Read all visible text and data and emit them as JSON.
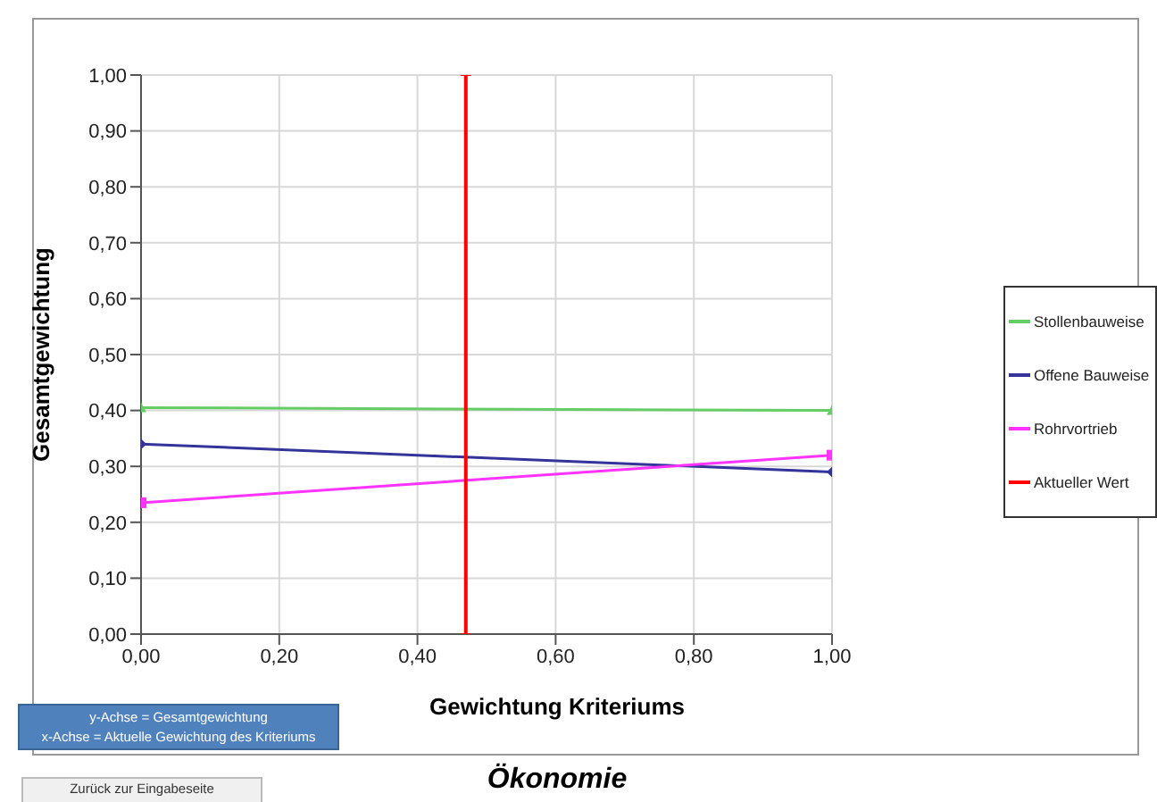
{
  "chart_data": {
    "type": "line",
    "title": "Ökonomie",
    "xlabel": "Gewichtung Kriteriums",
    "ylabel": "Gesamtgewichtung",
    "xlim": [
      0,
      1
    ],
    "ylim": [
      0,
      1
    ],
    "xticks": [
      {
        "value": 0,
        "label": "0,00"
      },
      {
        "value": 0.2,
        "label": "0,20"
      },
      {
        "value": 0.4,
        "label": "0,40"
      },
      {
        "value": 0.6,
        "label": "0,60"
      },
      {
        "value": 0.8,
        "label": "0,80"
      },
      {
        "value": 1,
        "label": "1,00"
      }
    ],
    "yticks": [
      {
        "value": 0,
        "label": "0,00"
      },
      {
        "value": 0.1,
        "label": "0,10"
      },
      {
        "value": 0.2,
        "label": "0,20"
      },
      {
        "value": 0.3,
        "label": "0,30"
      },
      {
        "value": 0.4,
        "label": "0,40"
      },
      {
        "value": 0.5,
        "label": "0,50"
      },
      {
        "value": 0.6,
        "label": "0,60"
      },
      {
        "value": 0.7,
        "label": "0,70"
      },
      {
        "value": 0.8,
        "label": "0,80"
      },
      {
        "value": 0.9,
        "label": "0,90"
      },
      {
        "value": 1,
        "label": "1,00"
      }
    ],
    "grid": true,
    "legend": "right",
    "series": [
      {
        "name": "Stollenbauweise",
        "color": "#66cc66",
        "marker": "triangle",
        "x": [
          0,
          1
        ],
        "values": [
          0.405,
          0.4
        ]
      },
      {
        "name": "Offene Bauweise",
        "color": "#333399",
        "marker": "diamond",
        "x": [
          0,
          1
        ],
        "values": [
          0.34,
          0.29
        ]
      },
      {
        "name": "Rohrvortrieb",
        "color": "#ff33ff",
        "marker": "square",
        "x": [
          0,
          1
        ],
        "values": [
          0.235,
          0.32
        ]
      },
      {
        "name": "Aktueller Wert",
        "color": "#ff0000",
        "marker": "cross",
        "x": [
          0.47,
          0.47
        ],
        "values": [
          0,
          1
        ]
      }
    ],
    "annotations": [
      "y-Achse = Gesamtgewichtung",
      "x-Achse = Aktuelle Gewichtung des Kriteriums",
      "Zurück zur Eingabeseite"
    ]
  }
}
